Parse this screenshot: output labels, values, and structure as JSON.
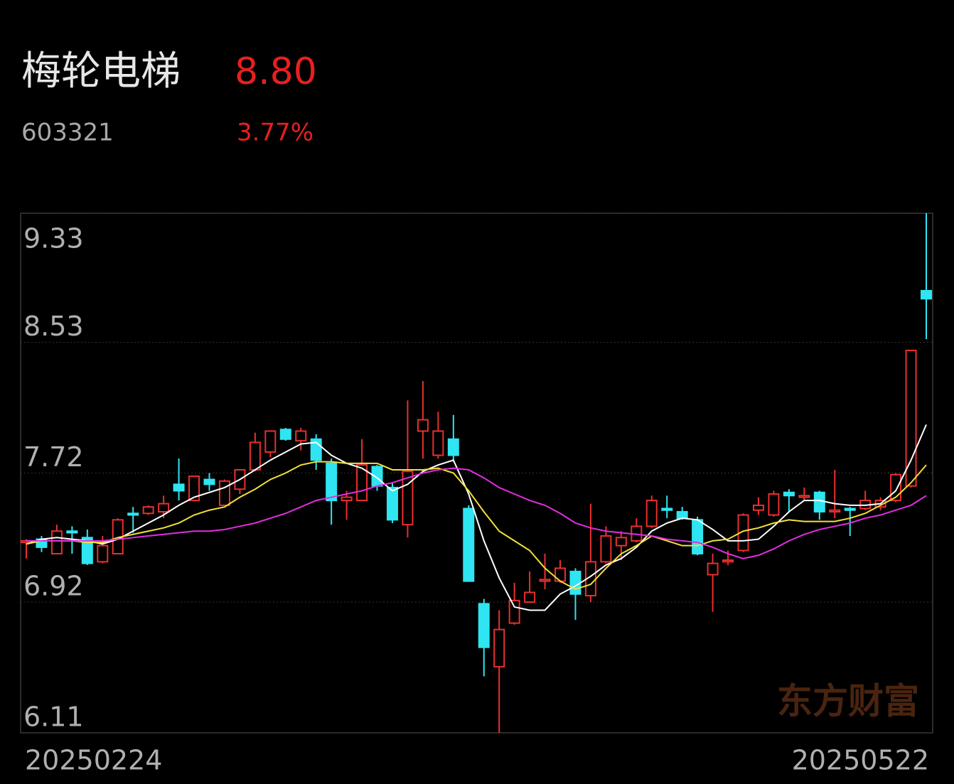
{
  "header": {
    "name": "梅轮电梯",
    "price": "8.80",
    "code": "603321",
    "change": "3.77%"
  },
  "watermark": "东方财富",
  "chart_data": {
    "type": "candlestick",
    "up_color": "#e8302e",
    "down_color": "#2fe5f2",
    "grid": true,
    "categories": [
      "20250224",
      null,
      null,
      null,
      null,
      null,
      null,
      null,
      null,
      null,
      null,
      null,
      null,
      null,
      null,
      null,
      null,
      null,
      null,
      null,
      null,
      null,
      null,
      null,
      null,
      null,
      null,
      null,
      null,
      null,
      null,
      null,
      null,
      null,
      null,
      null,
      null,
      null,
      null,
      null,
      null,
      null,
      null,
      null,
      null,
      null,
      null,
      null,
      null,
      null,
      null,
      null,
      null,
      null,
      null,
      null,
      null,
      null,
      null,
      "20250522"
    ],
    "open": [
      7.29,
      7.31,
      7.22,
      7.36,
      7.32,
      7.17,
      7.22,
      7.47,
      7.47,
      7.48,
      7.65,
      7.55,
      7.68,
      7.52,
      7.62,
      7.74,
      7.85,
      7.99,
      7.92,
      7.93,
      7.78,
      7.55,
      7.55,
      7.76,
      7.63,
      7.4,
      7.98,
      7.83,
      7.93,
      7.5,
      6.91,
      6.52,
      6.79,
      6.92,
      7.05,
      7.05,
      7.11,
      6.96,
      7.17,
      7.27,
      7.3,
      7.39,
      7.5,
      7.48,
      7.43,
      7.09,
      7.17,
      7.24,
      7.49,
      7.46,
      7.6,
      7.57,
      7.6,
      7.48,
      7.5,
      7.5,
      7.51,
      7.55,
      7.64,
      8.85
    ],
    "high": [
      7.31,
      7.33,
      7.4,
      7.39,
      7.37,
      7.33,
      7.44,
      7.51,
      7.52,
      7.58,
      7.81,
      7.7,
      7.72,
      7.68,
      7.74,
      7.97,
      7.98,
      8.0,
      8.0,
      7.96,
      7.81,
      7.61,
      7.93,
      7.77,
      7.66,
      8.17,
      8.29,
      8.1,
      8.08,
      7.52,
      6.94,
      6.87,
      7.04,
      7.11,
      7.22,
      7.18,
      7.13,
      7.53,
      7.39,
      7.36,
      7.44,
      7.58,
      7.58,
      7.51,
      7.45,
      7.22,
      7.24,
      7.47,
      7.57,
      7.61,
      7.62,
      7.63,
      7.61,
      7.74,
      7.51,
      7.61,
      7.57,
      7.72,
      8.48,
      9.33
    ],
    "low": [
      7.19,
      7.23,
      7.22,
      7.22,
      7.15,
      7.16,
      7.22,
      7.35,
      7.46,
      7.44,
      7.55,
      7.55,
      7.61,
      7.52,
      7.59,
      7.73,
      7.82,
      7.92,
      7.86,
      7.74,
      7.4,
      7.43,
      7.55,
      7.61,
      7.41,
      7.32,
      7.81,
      7.81,
      7.79,
      7.05,
      6.46,
      6.11,
      6.78,
      6.92,
      7.0,
      7.04,
      6.81,
      6.92,
      7.16,
      7.18,
      7.29,
      7.38,
      7.44,
      7.43,
      7.21,
      6.86,
      7.15,
      7.23,
      7.46,
      7.45,
      7.48,
      7.55,
      7.43,
      7.44,
      7.33,
      7.49,
      7.49,
      7.54,
      7.63,
      8.55
    ],
    "close": [
      7.3,
      7.26,
      7.36,
      7.35,
      7.16,
      7.27,
      7.43,
      7.46,
      7.51,
      7.53,
      7.61,
      7.7,
      7.65,
      7.67,
      7.74,
      7.91,
      7.98,
      7.93,
      7.98,
      7.8,
      7.55,
      7.57,
      7.77,
      7.64,
      7.43,
      7.73,
      8.05,
      7.98,
      7.83,
      7.05,
      6.64,
      6.75,
      6.93,
      6.98,
      7.06,
      7.13,
      6.97,
      7.17,
      7.33,
      7.32,
      7.39,
      7.55,
      7.49,
      7.44,
      7.22,
      7.16,
      7.18,
      7.46,
      7.52,
      7.59,
      7.58,
      7.58,
      7.48,
      7.49,
      7.49,
      7.55,
      7.55,
      7.71,
      8.48,
      8.8
    ],
    "series": [
      {
        "color": "#ffffff",
        "values": [
          7.28,
          7.31,
          7.32,
          7.31,
          7.3,
          7.28,
          7.31,
          7.36,
          7.41,
          7.46,
          7.52,
          7.57,
          7.6,
          7.63,
          7.68,
          7.74,
          7.8,
          7.85,
          7.9,
          7.91,
          7.83,
          7.78,
          7.75,
          7.69,
          7.61,
          7.65,
          7.73,
          7.77,
          7.8,
          7.59,
          7.3,
          7.07,
          6.89,
          6.87,
          6.87,
          6.97,
          7.02,
          7.08,
          7.15,
          7.19,
          7.26,
          7.36,
          7.41,
          7.44,
          7.43,
          7.37,
          7.3,
          7.3,
          7.31,
          7.39,
          7.48,
          7.55,
          7.55,
          7.53,
          7.52,
          7.52,
          7.53,
          7.61,
          7.8,
          8.02
        ]
      },
      {
        "color": "#f2e03a",
        "values": [
          7.28,
          7.3,
          7.3,
          7.3,
          7.29,
          7.29,
          7.32,
          7.34,
          7.36,
          7.38,
          7.41,
          7.46,
          7.49,
          7.51,
          7.57,
          7.62,
          7.68,
          7.72,
          7.77,
          7.79,
          7.79,
          7.78,
          7.78,
          7.78,
          7.74,
          7.74,
          7.74,
          7.75,
          7.72,
          7.61,
          7.48,
          7.36,
          7.3,
          7.24,
          7.13,
          7.05,
          7.0,
          7.03,
          7.13,
          7.22,
          7.27,
          7.33,
          7.3,
          7.27,
          7.27,
          7.3,
          7.31,
          7.36,
          7.38,
          7.41,
          7.43,
          7.42,
          7.42,
          7.42,
          7.44,
          7.47,
          7.52,
          7.57,
          7.66,
          7.77
        ]
      },
      {
        "color": "#e02ee0",
        "values": [
          7.3,
          7.3,
          7.3,
          7.3,
          7.3,
          7.3,
          7.31,
          7.32,
          7.33,
          7.34,
          7.35,
          7.36,
          7.36,
          7.37,
          7.39,
          7.41,
          7.44,
          7.47,
          7.51,
          7.55,
          7.57,
          7.59,
          7.61,
          7.64,
          7.66,
          7.69,
          7.72,
          7.74,
          7.75,
          7.74,
          7.69,
          7.63,
          7.59,
          7.55,
          7.52,
          7.47,
          7.41,
          7.38,
          7.36,
          7.35,
          7.34,
          7.33,
          7.31,
          7.3,
          7.29,
          7.26,
          7.22,
          7.19,
          7.21,
          7.25,
          7.3,
          7.34,
          7.37,
          7.39,
          7.41,
          7.44,
          7.46,
          7.49,
          7.52,
          7.58
        ]
      }
    ],
    "ylim": [
      6.11,
      9.33
    ],
    "yticks": [
      9.33,
      8.53,
      7.72,
      6.92,
      6.11
    ]
  }
}
